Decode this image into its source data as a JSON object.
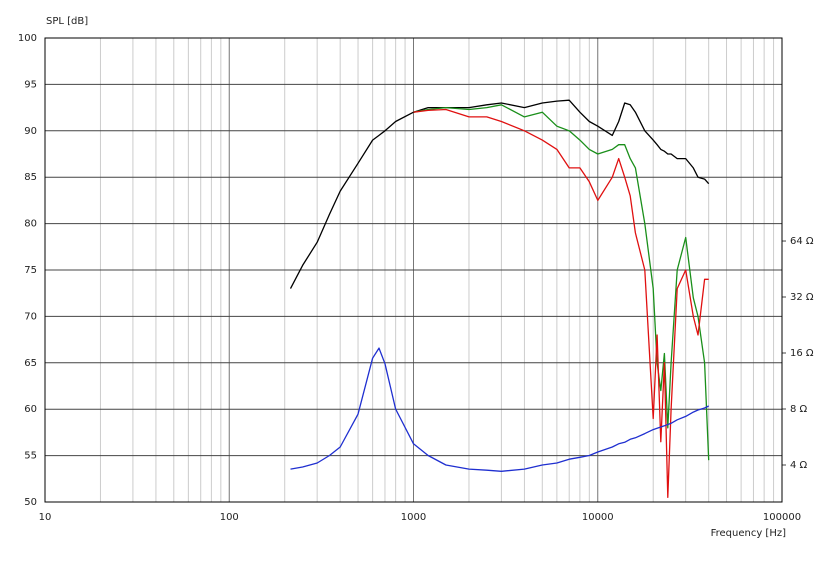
{
  "chart_data": {
    "type": "line",
    "y_label": "SPL [dB]",
    "x_label": "Frequency [Hz]",
    "xscale": "log",
    "y2scale": "log",
    "grid": true,
    "xlim": [
      10,
      100000
    ],
    "xticks": [
      10,
      100,
      1000,
      10000,
      100000
    ],
    "ylim": [
      50,
      100
    ],
    "yticks": [
      50,
      55,
      60,
      65,
      70,
      75,
      80,
      85,
      90,
      95,
      100
    ],
    "y2lim": [
      2.53,
      790
    ],
    "y2ticks": [
      {
        "value": 4,
        "label": "4 Ω"
      },
      {
        "value": 8,
        "label": "8 Ω"
      },
      {
        "value": 16,
        "label": "16 Ω"
      },
      {
        "value": 32,
        "label": "32 Ω"
      },
      {
        "value": 64,
        "label": "64 Ω"
      }
    ],
    "x": [
      215,
      250,
      300,
      350,
      400,
      500,
      600,
      650,
      700,
      800,
      1000,
      1200,
      1500,
      2000,
      2500,
      3000,
      4000,
      5000,
      6000,
      7000,
      8000,
      9000,
      10000,
      12000,
      13000,
      14000,
      15000,
      16000,
      18000,
      20000,
      21000,
      22000,
      23000,
      24000,
      25000,
      27000,
      30000,
      33000,
      35000,
      38000,
      40000
    ],
    "series": [
      {
        "color": "#000000",
        "values": [
          73,
          75.5,
          78,
          81,
          83.5,
          86.5,
          89,
          89.5,
          90,
          91,
          92,
          92.5,
          92.5,
          92.5,
          92.8,
          93,
          92.5,
          93,
          93.2,
          93.3,
          92,
          91,
          90.5,
          89.5,
          91,
          93,
          92.8,
          92,
          90,
          89,
          88.5,
          88,
          87.8,
          87.5,
          87.5,
          87,
          87,
          86,
          85,
          84.8,
          84.3
        ]
      },
      {
        "color": "#1a8f1a",
        "values": [
          null,
          null,
          null,
          null,
          null,
          null,
          null,
          null,
          null,
          null,
          92,
          92.3,
          92.5,
          92.3,
          92.5,
          92.8,
          91.5,
          92,
          90.5,
          90,
          89,
          88,
          87.5,
          88,
          88.5,
          88.5,
          87,
          86,
          80,
          73,
          65,
          62,
          66,
          58,
          65,
          75,
          78.5,
          72,
          70,
          65,
          54.5
        ]
      },
      {
        "color": "#e01010",
        "values": [
          null,
          null,
          null,
          null,
          null,
          null,
          null,
          null,
          null,
          null,
          92,
          92.2,
          92.3,
          91.5,
          91.5,
          91,
          90,
          89,
          88,
          86,
          86,
          84.5,
          82.5,
          85,
          87,
          85,
          83,
          79,
          75,
          59,
          68,
          56.5,
          65,
          50.5,
          60,
          73,
          75,
          70,
          68,
          74,
          74
        ]
      },
      {
        "color": "#1f2fd0",
        "axis": "y2",
        "values": [
          3.8,
          3.9,
          4.1,
          4.5,
          5.0,
          7.5,
          15,
          17,
          14,
          8,
          5.2,
          4.5,
          4.0,
          3.8,
          3.75,
          3.7,
          3.8,
          4.0,
          4.1,
          4.3,
          4.4,
          4.5,
          4.7,
          5.0,
          5.2,
          5.3,
          5.5,
          5.6,
          5.9,
          6.2,
          6.3,
          6.4,
          6.5,
          6.6,
          6.7,
          7.0,
          7.3,
          7.7,
          7.9,
          8.1,
          8.3
        ]
      }
    ]
  }
}
